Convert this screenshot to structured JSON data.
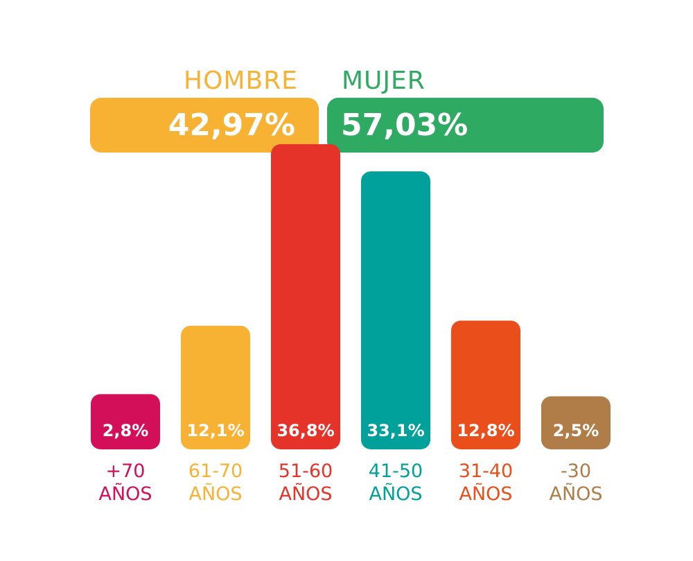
{
  "gender": {
    "hombre": {
      "label": "HOMBRE",
      "value": "42,97%",
      "color": "#f7b234"
    },
    "mujer": {
      "label": "MUJER",
      "value": "57,03%",
      "color": "#2faa63"
    }
  },
  "chart_data": {
    "type": "bar",
    "categories": [
      "+70 AÑOS",
      "61-70 AÑOS",
      "51-60 AÑOS",
      "41-50 AÑOS",
      "31-40 AÑOS",
      "-30 AÑOS"
    ],
    "category_lines": [
      [
        "+70",
        "AÑOS"
      ],
      [
        "61-70",
        "AÑOS"
      ],
      [
        "51-60",
        "AÑOS"
      ],
      [
        "41-50",
        "AÑOS"
      ],
      [
        "31-40",
        "AÑOS"
      ],
      [
        "-30",
        "AÑOS"
      ]
    ],
    "values": [
      2.8,
      12.1,
      36.8,
      33.1,
      12.8,
      2.5
    ],
    "value_labels": [
      "2,8%",
      "12,1%",
      "36,8%",
      "33,1%",
      "12,8%",
      "2,5%"
    ],
    "colors": [
      "#d40f5a",
      "#f7b234",
      "#e6332a",
      "#00a19a",
      "#e94e1b",
      "#b07c47"
    ],
    "grid": false
  }
}
